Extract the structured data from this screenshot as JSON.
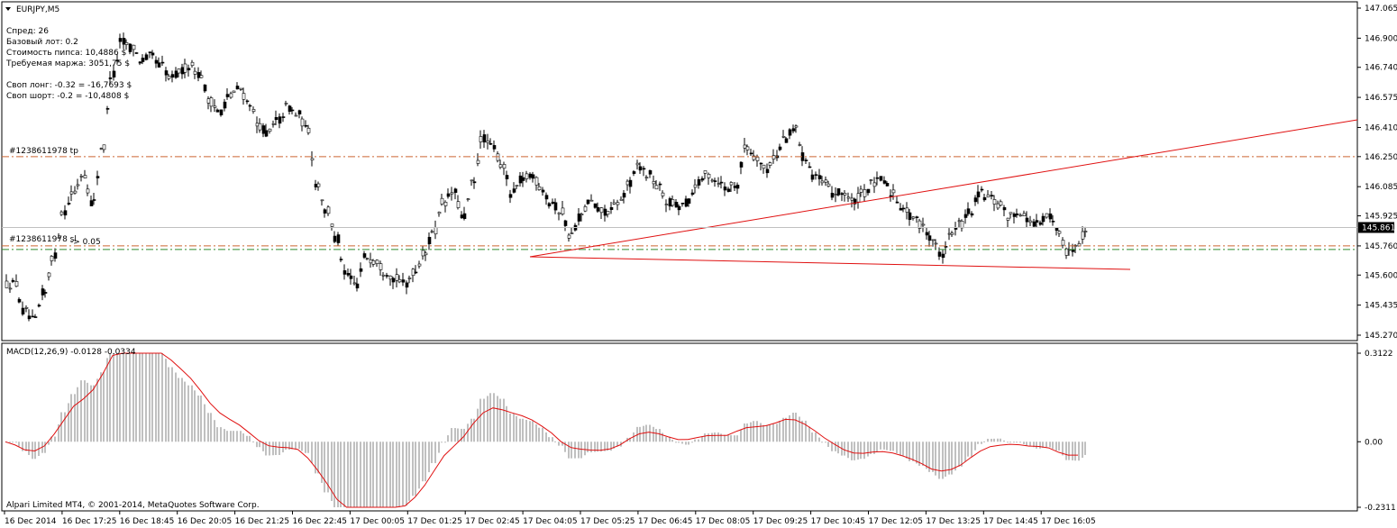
{
  "symbol_title": "EURJPY,M5",
  "info_lines": [
    "Спред: 26",
    "Базовый лот: 0.2",
    "Стоимость пипса: 10,4886 $",
    "Требуемая маржа: 3051,75 $",
    "",
    "Своп лонг: -0.32 = -16,7693 $",
    "Своп шорт: -0.2 = -10,4808 $"
  ],
  "order_labels": {
    "tp": "#1238611978 tp",
    "sl": "#1238611978 sl",
    "sl_extra": "-> 0.05"
  },
  "current_price": "145.861",
  "price_ticks": [
    "147.065",
    "146.900",
    "146.740",
    "146.575",
    "146.410",
    "146.250",
    "146.085",
    "145.925",
    "145.760",
    "145.600",
    "145.435",
    "145.270"
  ],
  "macd_title": "MACD(12,26,9) -0.0128 -0.0334",
  "macd_ticks": [
    "0.3122",
    "0.00",
    "-0.2311"
  ],
  "copyright": "Alpari Limited MT4, © 2001-2014, MetaQuotes Software Corp.",
  "time_labels": [
    "16 Dec 2014",
    "16 Dec 17:25",
    "16 Dec 18:45",
    "16 Dec 20:05",
    "16 Dec 21:25",
    "16 Dec 22:45",
    "17 Dec 00:05",
    "17 Dec 01:25",
    "17 Dec 02:45",
    "17 Dec 04:05",
    "17 Dec 05:25",
    "17 Dec 06:45",
    "17 Dec 08:05",
    "17 Dec 09:25",
    "17 Dec 10:45",
    "17 Dec 12:05",
    "17 Dec 13:25",
    "17 Dec 14:45",
    "17 Dec 16:05"
  ],
  "colors": {
    "trendline": "#e01010",
    "tp_line": "#cc6633",
    "sl_line": "#cc6633",
    "green_line": "#2e8b2e",
    "macd_bar": "#c0c0c0",
    "signal": "#e01010",
    "candle": "#000000"
  },
  "chart_data": {
    "type": "candlestick",
    "symbol": "EURJPY",
    "timeframe": "M5",
    "y_range": [
      145.27,
      147.065
    ],
    "tp_level": 146.25,
    "sl_level": 145.75,
    "current_price": 145.861,
    "close_approx": [
      145.55,
      145.4,
      145.35,
      145.5,
      145.7,
      145.95,
      146.05,
      146.15,
      146.0,
      146.3,
      146.7,
      146.88,
      146.85,
      146.78,
      146.8,
      146.75,
      146.68,
      146.72,
      146.75,
      146.7,
      146.55,
      146.5,
      146.58,
      146.62,
      146.55,
      146.42,
      146.38,
      146.45,
      146.52,
      146.48,
      146.4,
      146.1,
      145.95,
      145.8,
      145.6,
      145.55,
      145.7,
      145.68,
      145.62,
      145.58,
      145.55,
      145.62,
      145.72,
      145.85,
      146.0,
      146.05,
      145.92,
      146.1,
      146.35,
      146.3,
      146.2,
      146.05,
      146.12,
      146.15,
      146.08,
      146.0,
      145.95,
      145.82,
      145.92,
      146.0,
      145.95,
      145.95,
      146.0,
      146.1,
      146.2,
      146.15,
      146.08,
      146.0,
      145.98,
      146.0,
      146.1,
      146.15,
      146.12,
      146.08,
      146.1,
      146.3,
      146.25,
      146.18,
      146.25,
      146.35,
      146.4,
      146.25,
      146.15,
      146.1,
      146.05,
      146.05,
      146.0,
      146.05,
      146.1,
      146.12,
      146.05,
      145.98,
      145.92,
      145.88,
      145.8,
      145.72,
      145.82,
      145.88,
      145.95,
      146.05,
      146.02,
      145.98,
      145.92,
      145.95,
      145.9,
      145.88,
      145.92,
      145.85,
      145.72,
      145.78,
      145.86
    ],
    "macd_range": [
      -0.2311,
      0.3122
    ],
    "macd_current": -0.0128,
    "signal_current": -0.0334,
    "x_tick_labels": [
      "16 Dec 2014",
      "16 Dec 17:25",
      "16 Dec 18:45",
      "16 Dec 20:05",
      "16 Dec 21:25",
      "16 Dec 22:45",
      "17 Dec 00:05",
      "17 Dec 01:25",
      "17 Dec 02:45",
      "17 Dec 04:05",
      "17 Dec 05:25",
      "17 Dec 06:45",
      "17 Dec 08:05",
      "17 Dec 09:25",
      "17 Dec 10:45",
      "17 Dec 12:05",
      "17 Dec 13:25",
      "17 Dec 14:45",
      "17 Dec 16:05"
    ]
  }
}
